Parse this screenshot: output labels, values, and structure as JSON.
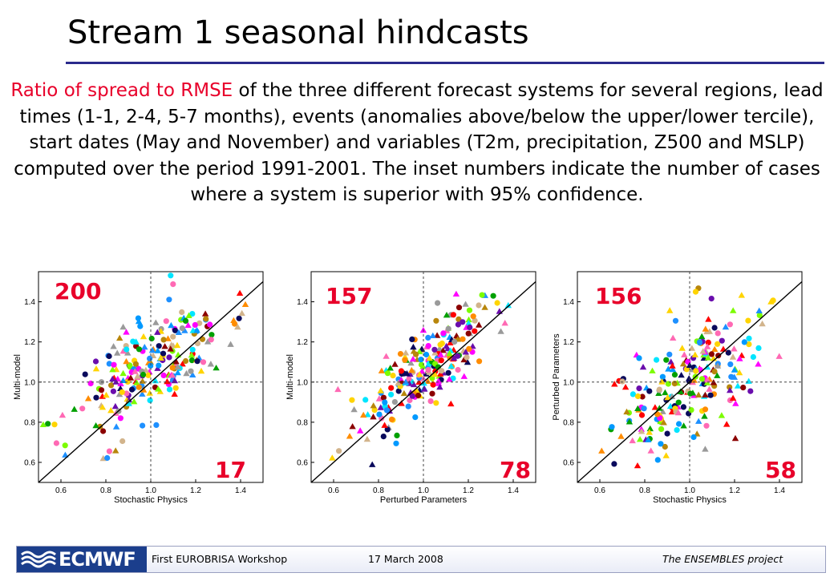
{
  "slide": {
    "title": "Stream 1 seasonal hindcasts",
    "intro_highlight": "Ratio of spread to RMSE",
    "intro_rest": " of the three different forecast systems for several regions, lead times (1-1, 2-4, 5-7 months), events (anomalies above/below the upper/lower tercile), start dates (May and November) and variables (T2m, precipitation, Z500 and MSLP) computed over the period 1991-2001. The inset numbers indicate the number of cases where a system is superior with 95% confidence."
  },
  "colors": {
    "title_rule": "#2a2a8c",
    "highlight": "#e8002a",
    "logo_bg": "#1b3e8c",
    "marker_palette": [
      "#0a0a5c",
      "#ff0000",
      "#00a000",
      "#ff00ff",
      "#ffd400",
      "#0099ff",
      "#b8860b",
      "#ff8c00",
      "#9a9a9a",
      "#00e5ff",
      "#7cfc00",
      "#8b0000",
      "#1e90ff",
      "#ff69b4",
      "#6a0dad",
      "#d2b48c"
    ]
  },
  "footer": {
    "logo_text": "ECMWF",
    "workshop": "First EUROBRISA Workshop",
    "date": "17 March 2008",
    "project": "The ENSEMBLES project"
  },
  "chart_data": [
    {
      "type": "scatter",
      "xlabel": "Stochastic Physics",
      "ylabel": "Multi-model",
      "xlim": [
        0.5,
        1.5
      ],
      "ylim": [
        0.5,
        1.55
      ],
      "xticks": [
        "0.6",
        "0.8",
        "1.0",
        "1.2",
        "1.4"
      ],
      "yticks": [
        "0.6",
        "0.8",
        "1.0",
        "1.2",
        "1.4"
      ],
      "reference_lines": [
        "diagonal y=x",
        "dashed x=1.0",
        "dashed y=1.0"
      ],
      "count_upper": "200",
      "count_lower": "17",
      "points": {
        "n": 230,
        "center_x": 1.0,
        "center_y": 1.08,
        "sx": 0.17,
        "sy": 0.17,
        "rho": 0.6,
        "seed": 11
      }
    },
    {
      "type": "scatter",
      "xlabel": "Perturbed Parameters",
      "ylabel": "Multi-model",
      "xlim": [
        0.5,
        1.5
      ],
      "ylim": [
        0.5,
        1.55
      ],
      "xticks": [
        "0.6",
        "0.8",
        "1.0",
        "1.2",
        "1.4"
      ],
      "yticks": [
        "0.6",
        "0.8",
        "1.0",
        "1.2",
        "1.4"
      ],
      "reference_lines": [
        "diagonal y=x",
        "dashed x=1.0",
        "dashed y=1.0"
      ],
      "count_upper": "157",
      "count_lower": "78",
      "points": {
        "n": 230,
        "center_x": 1.0,
        "center_y": 1.07,
        "sx": 0.15,
        "sy": 0.16,
        "rho": 0.78,
        "seed": 23
      }
    },
    {
      "type": "scatter",
      "xlabel": "Stochastic Physics",
      "ylabel": "Perturbed Parameters",
      "xlim": [
        0.5,
        1.5
      ],
      "ylim": [
        0.5,
        1.55
      ],
      "xticks": [
        "0.6",
        "0.8",
        "1.0",
        "1.2",
        "1.4"
      ],
      "yticks": [
        "0.6",
        "0.8",
        "1.0",
        "1.2",
        "1.4"
      ],
      "reference_lines": [
        "diagonal y=x",
        "dashed x=1.0",
        "dashed y=1.0"
      ],
      "count_upper": "156",
      "count_lower": "58",
      "points": {
        "n": 230,
        "center_x": 1.01,
        "center_y": 1.03,
        "sx": 0.17,
        "sy": 0.19,
        "rho": 0.55,
        "seed": 37
      }
    }
  ]
}
